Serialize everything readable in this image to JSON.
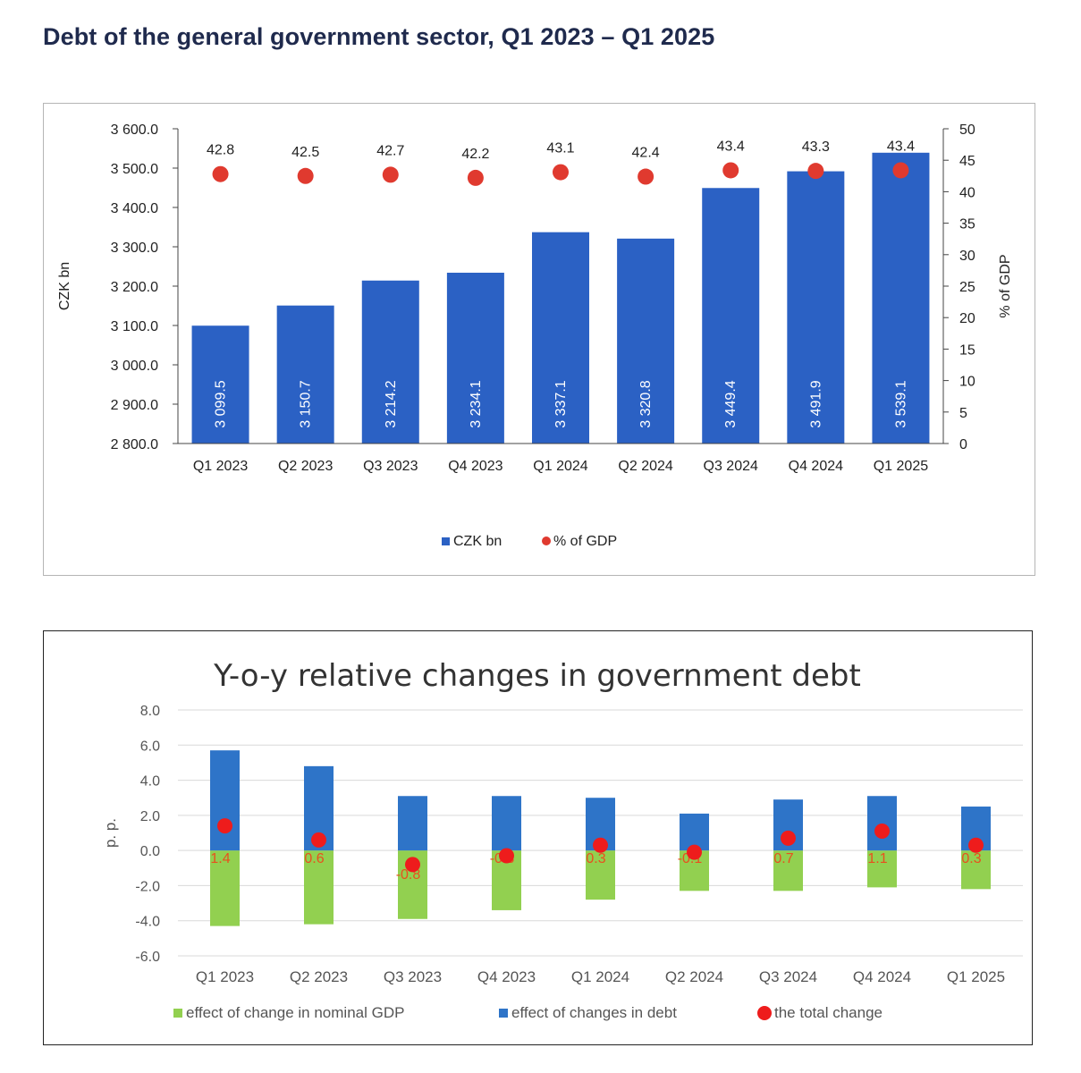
{
  "page": {
    "title": "Debt of the general government sector, Q1 2023 – Q1 2025"
  },
  "chart_data": [
    {
      "type": "bar",
      "title": "",
      "categories": [
        "Q1 2023",
        "Q2 2023",
        "Q3 2023",
        "Q4 2023",
        "Q1 2024",
        "Q2 2024",
        "Q3 2024",
        "Q4 2024",
        "Q1 2025"
      ],
      "series": [
        {
          "name": "CZK bn",
          "type": "bar",
          "axis": "left",
          "color": "#2b61c4",
          "values": [
            3099.5,
            3150.7,
            3214.2,
            3234.1,
            3337.1,
            3320.8,
            3449.4,
            3491.9,
            3539.1
          ],
          "labels": [
            "3 099.5",
            "3 150.7",
            "3 214.2",
            "3 234.1",
            "3 337.1",
            "3 320.8",
            "3 449.4",
            "3 491.9",
            "3 539.1"
          ]
        },
        {
          "name": "% of GDP",
          "type": "scatter",
          "axis": "right",
          "color": "#e03a2f",
          "values": [
            42.8,
            42.5,
            42.7,
            42.2,
            43.1,
            42.4,
            43.4,
            43.3,
            43.4
          ],
          "labels": [
            "42.8",
            "42.5",
            "42.7",
            "42.2",
            "43.1",
            "42.4",
            "43.4",
            "43.3",
            "43.4"
          ]
        }
      ],
      "ylabel": "CZK bn",
      "y2label": "% of GDP",
      "ylim": [
        2800,
        3600
      ],
      "y2lim": [
        0,
        50
      ],
      "yticks": [
        "2 800.0",
        "2 900.0",
        "3 000.0",
        "3 100.0",
        "3 200.0",
        "3 300.0",
        "3 400.0",
        "3 500.0",
        "3 600.0"
      ],
      "y2ticks": [
        "0",
        "5",
        "10",
        "15",
        "20",
        "25",
        "30",
        "35",
        "40",
        "45",
        "50"
      ],
      "grid": false,
      "legend": "bottom"
    },
    {
      "type": "bar",
      "title": "Y-o-y relative changes in government debt",
      "categories": [
        "Q1 2023",
        "Q2 2023",
        "Q3 2023",
        "Q4 2023",
        "Q1 2024",
        "Q2 2024",
        "Q3 2024",
        "Q4 2024",
        "Q1 2025"
      ],
      "stacked": true,
      "series": [
        {
          "name": "effect of change in nominal GDP",
          "type": "bar",
          "color": "#92d050",
          "values": [
            -4.3,
            -4.2,
            -3.9,
            -3.4,
            -2.8,
            -2.3,
            -2.3,
            -2.1,
            -2.2
          ]
        },
        {
          "name": "effect of changes in debt",
          "type": "bar",
          "color": "#2e74c8",
          "values": [
            5.7,
            4.8,
            3.1,
            3.1,
            3.0,
            2.1,
            2.9,
            3.1,
            2.5
          ]
        },
        {
          "name": "the total change",
          "type": "scatter",
          "color": "#ee1c1c",
          "values": [
            1.4,
            0.6,
            -0.8,
            -0.3,
            0.3,
            -0.1,
            0.7,
            1.1,
            0.3
          ],
          "labels": [
            "1.4",
            "0.6",
            "-0.8",
            "-0.3",
            "0.3",
            "-0.1",
            "0.7",
            "1.1",
            "0.3"
          ]
        }
      ],
      "ylabel": "p. p.",
      "ylim": [
        -6,
        8
      ],
      "yticks": [
        "-6.0",
        "-4.0",
        "-2.0",
        "0.0",
        "2.0",
        "4.0",
        "6.0",
        "8.0"
      ],
      "grid": true,
      "legend": "bottom"
    }
  ]
}
